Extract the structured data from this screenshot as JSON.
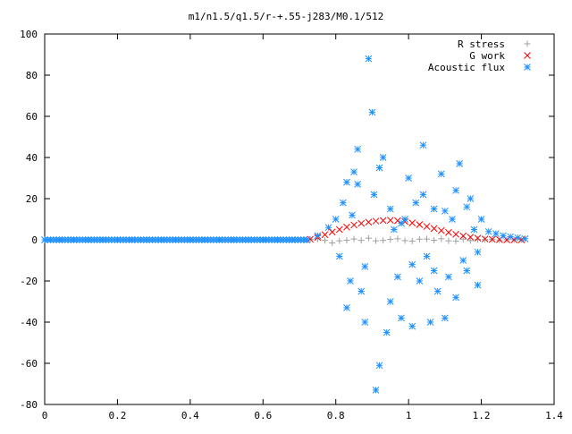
{
  "chart_data": {
    "type": "scatter",
    "title": "m1/n1.5/q1.5/r-+.55-j283/M0.1/512",
    "xlabel": "",
    "ylabel": "",
    "xlim": [
      0,
      1.4
    ],
    "ylim": [
      -80,
      100
    ],
    "xticks": [
      0,
      0.2,
      0.4,
      0.6,
      0.8,
      1,
      1.2,
      1.4
    ],
    "xtick_labels": [
      "0",
      "0.2",
      "0.4",
      "0.6",
      "0.8",
      "1",
      "1.2",
      "1.4"
    ],
    "yticks": [
      -80,
      -60,
      -40,
      -20,
      0,
      20,
      40,
      60,
      80,
      100
    ],
    "ytick_labels": [
      "-80",
      "-60",
      "-40",
      "-20",
      "0",
      "20",
      "40",
      "60",
      "80",
      "100"
    ],
    "grid": false,
    "legend_position": "top-right",
    "series": [
      {
        "name": "R stress",
        "marker": "plus",
        "color": "#a0a0a0",
        "x": [
          0.73,
          0.75,
          0.77,
          0.79,
          0.81,
          0.83,
          0.85,
          0.87,
          0.89,
          0.91,
          0.93,
          0.95,
          0.97,
          0.99,
          1.01,
          1.03,
          1.05,
          1.07,
          1.09,
          1.11,
          1.13,
          1.15,
          1.17,
          1.19,
          1.21,
          1.23,
          1.25,
          1.27,
          1.29,
          1.31
        ],
        "y": [
          0.2,
          0.4,
          -0.3,
          -1.5,
          -0.5,
          -0.2,
          0.4,
          -0.3,
          0.8,
          -0.5,
          -0.3,
          0.2,
          0.5,
          -0.4,
          -0.6,
          0.3,
          0.4,
          -0.2,
          0.5,
          -0.5,
          -0.6,
          0.3,
          -0.4,
          0.2,
          0.1,
          0.2,
          -0.1,
          0.1,
          0.0,
          0.1
        ]
      },
      {
        "name": "G work",
        "marker": "cross",
        "color": "#ff0000",
        "x": [
          0.73,
          0.75,
          0.77,
          0.79,
          0.81,
          0.83,
          0.85,
          0.87,
          0.89,
          0.91,
          0.93,
          0.95,
          0.97,
          0.99,
          1.01,
          1.03,
          1.05,
          1.07,
          1.09,
          1.11,
          1.13,
          1.15,
          1.17,
          1.19,
          1.21,
          1.23,
          1.25,
          1.27,
          1.29,
          1.31
        ],
        "y": [
          0.3,
          1.2,
          2.5,
          3.8,
          5.0,
          6.2,
          7.2,
          8.0,
          8.6,
          9.1,
          9.4,
          9.5,
          9.3,
          8.9,
          8.2,
          7.4,
          6.5,
          5.5,
          4.5,
          3.6,
          2.7,
          1.9,
          1.3,
          0.8,
          0.4,
          0.2,
          0.1,
          0.0,
          0.0,
          0.0
        ]
      },
      {
        "name": "Acoustic flux",
        "marker": "star",
        "color": "#1e90ff",
        "x": [
          0.0,
          0.04,
          0.08,
          0.12,
          0.16,
          0.2,
          0.24,
          0.28,
          0.32,
          0.36,
          0.4,
          0.44,
          0.48,
          0.52,
          0.56,
          0.6,
          0.64,
          0.68,
          0.72,
          0.75,
          0.78,
          0.8,
          0.81,
          0.82,
          0.83,
          0.84,
          0.845,
          0.85,
          0.86,
          0.87,
          0.88,
          0.89,
          0.9,
          0.905,
          0.91,
          0.92,
          0.93,
          0.94,
          0.95,
          0.96,
          0.97,
          0.98,
          0.99,
          1.0,
          1.01,
          1.02,
          1.03,
          1.04,
          1.05,
          1.06,
          1.07,
          1.08,
          1.09,
          1.1,
          1.11,
          1.12,
          1.13,
          1.14,
          1.15,
          1.16,
          1.17,
          1.18,
          1.19,
          1.2,
          1.22,
          1.24,
          1.26,
          1.28,
          1.3,
          1.32,
          0.83,
          0.86,
          0.88,
          0.92,
          0.95,
          0.98,
          1.01,
          1.04,
          1.07,
          1.1,
          1.13,
          1.16,
          1.19
        ],
        "y": [
          0,
          0,
          0,
          0,
          0,
          0,
          0,
          0,
          0,
          0,
          0,
          0,
          0,
          0,
          0,
          0,
          0,
          0,
          0,
          2,
          6,
          10,
          -8,
          18,
          28,
          -20,
          12,
          33,
          44,
          -25,
          -40,
          88,
          62,
          22,
          -73,
          -61,
          40,
          -45,
          15,
          5,
          -18,
          -38,
          10,
          30,
          -12,
          18,
          -20,
          46,
          -8,
          -40,
          15,
          -25,
          32,
          -38,
          -18,
          10,
          24,
          37,
          -10,
          -15,
          20,
          5,
          -22,
          10,
          4,
          3,
          2,
          1.5,
          1,
          0.5,
          -33,
          27,
          -13,
          35,
          -30,
          8,
          -42,
          22,
          -15,
          14,
          -28,
          16,
          -6
        ]
      }
    ]
  }
}
